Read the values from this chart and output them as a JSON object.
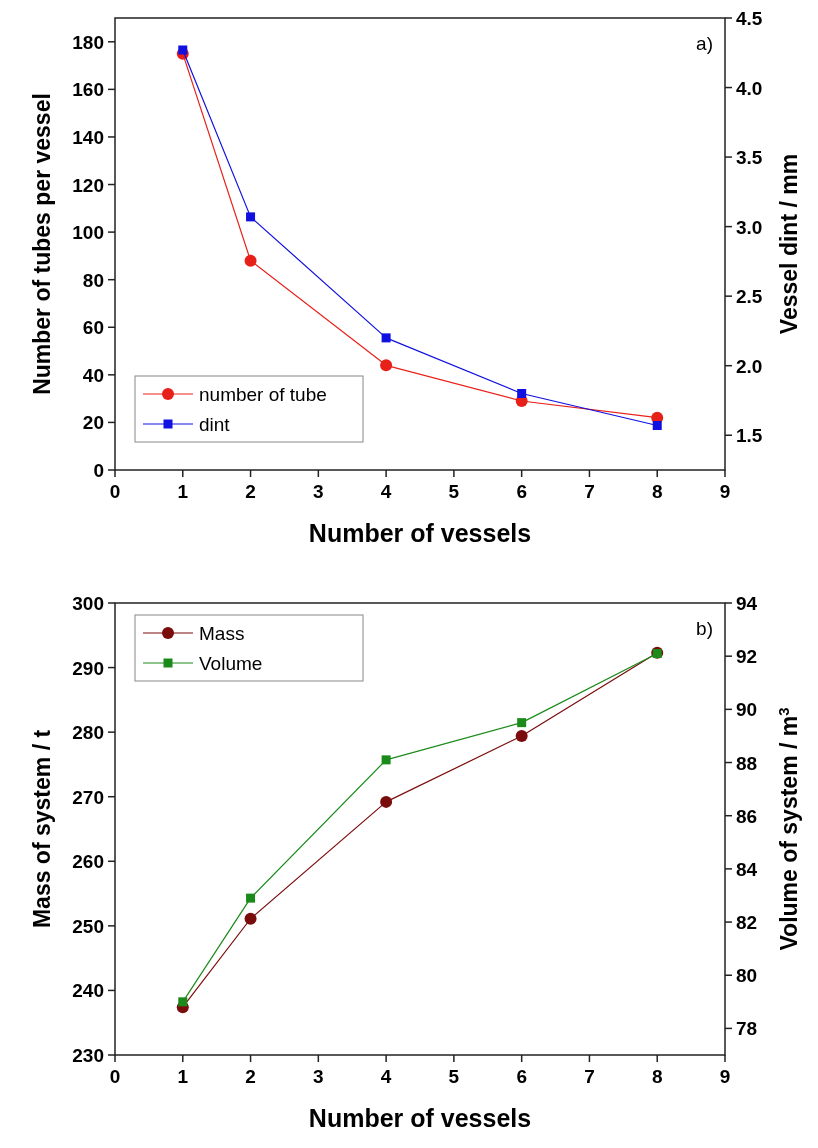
{
  "chart_data": [
    {
      "type": "line",
      "xlabel": "Number of vessels",
      "ylabel": "Number of tubes per vessel",
      "y2label": "Vessel dint / mm",
      "annotations": [
        "a)"
      ],
      "x": [
        1,
        2,
        4,
        6,
        8
      ],
      "xlim": [
        0,
        9
      ],
      "xticks": [
        0,
        1,
        2,
        3,
        4,
        5,
        6,
        7,
        8,
        9
      ],
      "ylim": [
        0,
        190
      ],
      "yticks": [
        0,
        20,
        40,
        60,
        80,
        100,
        120,
        140,
        160,
        180
      ],
      "y2lim": [
        1.25,
        4.5
      ],
      "y2ticks": [
        {
          "value": 1.5,
          "label": "1.5"
        },
        {
          "value": 2,
          "label": "2.0"
        },
        {
          "value": 2.5,
          "label": "2.5"
        },
        {
          "value": 3,
          "label": "3.0"
        },
        {
          "value": 3.5,
          "label": "3.5"
        },
        {
          "value": 4,
          "label": "4.0"
        },
        {
          "value": 4.5,
          "label": "4.5"
        }
      ],
      "legend": "bottom left",
      "grid": false,
      "series": [
        {
          "name": "number of tube",
          "color": "#e8201a",
          "marker": "circle",
          "values": [
            175,
            88,
            44,
            29,
            22
          ]
        },
        {
          "name": "dint",
          "color": "#1010e0",
          "marker": "square",
          "axis": "y2",
          "values": [
            4.27,
            3.07,
            2.2,
            1.8,
            1.57
          ]
        }
      ]
    },
    {
      "type": "line",
      "xlabel": "Number of vessels",
      "ylabel": "Mass of system / t",
      "y2label": "Volume of system / m$^{3}$",
      "annotations": [
        "b)"
      ],
      "x": [
        1,
        2,
        4,
        6,
        8
      ],
      "xlim": [
        0,
        9
      ],
      "xticks": [
        0,
        1,
        2,
        3,
        4,
        5,
        6,
        7,
        8,
        9
      ],
      "ylim": [
        230,
        300
      ],
      "yticks": [
        230,
        240,
        250,
        260,
        270,
        280,
        290,
        300
      ],
      "y2lim": [
        77,
        94
      ],
      "y2ticks": [
        78,
        80,
        82,
        84,
        86,
        88,
        90,
        92,
        94
      ],
      "legend": "top left",
      "grid": false,
      "series": [
        {
          "name": "Mass",
          "color": "#7a0c0c",
          "marker": "circle",
          "values": [
            237.4,
            251.1,
            269.2,
            279.4,
            292.3
          ]
        },
        {
          "name": "Volume",
          "color": "#1a8a1a",
          "marker": "square",
          "axis": "y2",
          "values": [
            79.0,
            82.9,
            88.1,
            89.5,
            92.1
          ]
        }
      ]
    }
  ]
}
